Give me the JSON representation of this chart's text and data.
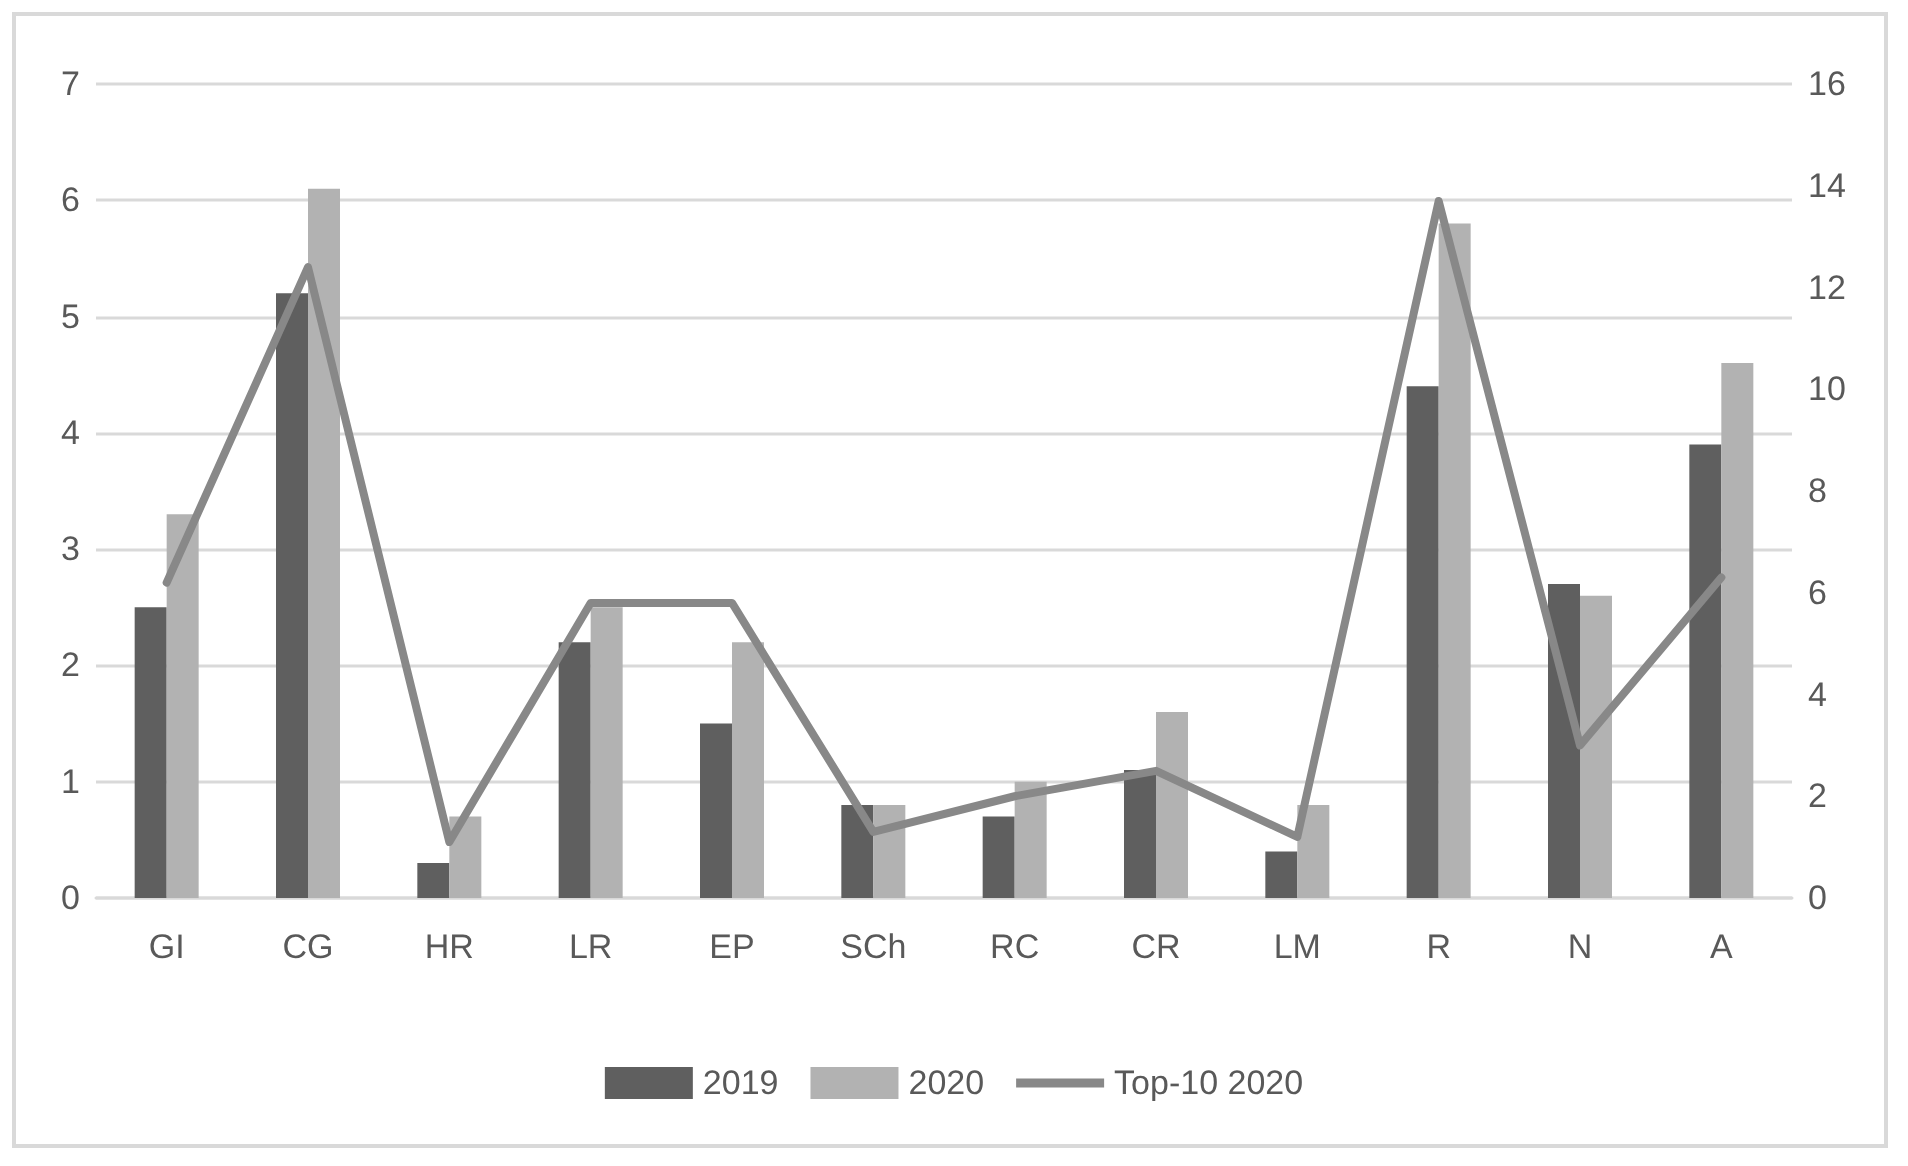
{
  "chart_data": {
    "type": "bar",
    "categories": [
      "GI",
      "CG",
      "HR",
      "LR",
      "EP",
      "SCh",
      "RC",
      "CR",
      "LM",
      "R",
      "N",
      "A"
    ],
    "series": [
      {
        "name": "2019",
        "color": "#5f5f5f",
        "values": [
          2.5,
          5.2,
          0.3,
          2.2,
          1.5,
          0.8,
          0.7,
          1.1,
          0.4,
          4.4,
          2.7,
          3.9
        ]
      },
      {
        "name": "2020",
        "color": "#b2b2b2",
        "values": [
          3.3,
          6.1,
          0.7,
          2.5,
          2.2,
          0.8,
          1.0,
          1.6,
          0.8,
          5.8,
          2.6,
          4.6
        ]
      },
      {
        "name": "Top-10 2020",
        "type": "line",
        "axis": "y2",
        "color": "#888888",
        "values": [
          6.2,
          12.4,
          1.1,
          5.8,
          5.8,
          1.3,
          2.0,
          2.5,
          1.2,
          13.7,
          3.0,
          6.3
        ]
      }
    ],
    "ylim": [
      0,
      7
    ],
    "yticks": [
      0,
      1,
      2,
      3,
      4,
      5,
      6,
      7
    ],
    "y2lim": [
      0,
      16
    ],
    "y2ticks": [
      0,
      2,
      4,
      6,
      8,
      10,
      12,
      14,
      16
    ],
    "grid": "y",
    "legend": "bottom",
    "marker": "none"
  }
}
